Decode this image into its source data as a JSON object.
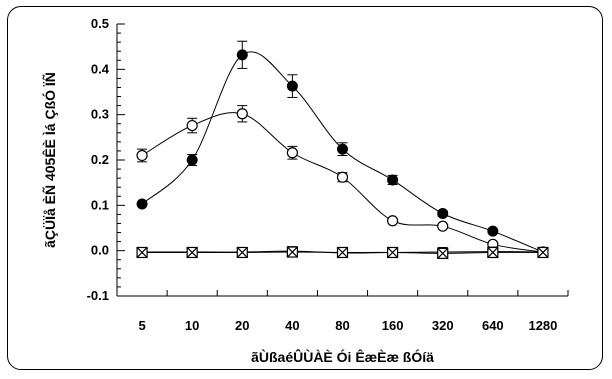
{
  "chart_data": {
    "type": "line",
    "xlabel": "ãÙßaéÛÙÀÈ Ói ÊæÈæ ßÓíä",
    "ylabel": "ãÇÜÏå ÈÑ 405ÊÈ Ìá ÇßÓ ÏÑ",
    "categories": [
      "5",
      "10",
      "20",
      "40",
      "80",
      "160",
      "320",
      "640",
      "1280"
    ],
    "ylim": [
      -0.1,
      0.5
    ],
    "yticks": [
      "-0.1",
      "0.0",
      "0.1",
      "0.2",
      "0.3",
      "0.4",
      "0.5"
    ],
    "grid": false,
    "series": [
      {
        "marker": "filled-circle",
        "values": [
          0.103,
          0.2,
          0.432,
          0.363,
          0.224,
          0.156,
          0.082,
          0.043,
          -0.003
        ],
        "errors": [
          0,
          0.012,
          0.03,
          0.025,
          0.014,
          0.01,
          0.006,
          0.005,
          0
        ]
      },
      {
        "marker": "open-circle",
        "values": [
          0.21,
          0.276,
          0.302,
          0.216,
          0.162,
          0.066,
          0.054,
          0.014,
          -0.003
        ],
        "errors": [
          0.014,
          0.016,
          0.018,
          0.014,
          0.01,
          0,
          0,
          0,
          0
        ]
      },
      {
        "marker": "filled-square",
        "values": [
          -0.003,
          -0.003,
          -0.003,
          -0.001,
          -0.005,
          -0.004,
          -0.003,
          -0.002,
          -0.003
        ],
        "errors": [
          0,
          0,
          0,
          0,
          0,
          0,
          0,
          0,
          0
        ]
      },
      {
        "marker": "cross-box",
        "values": [
          -0.004,
          -0.004,
          -0.004,
          -0.003,
          -0.004,
          -0.004,
          -0.006,
          -0.004,
          -0.004
        ],
        "errors": [
          0,
          0,
          0,
          0,
          0,
          0,
          0,
          0,
          0
        ]
      }
    ]
  }
}
